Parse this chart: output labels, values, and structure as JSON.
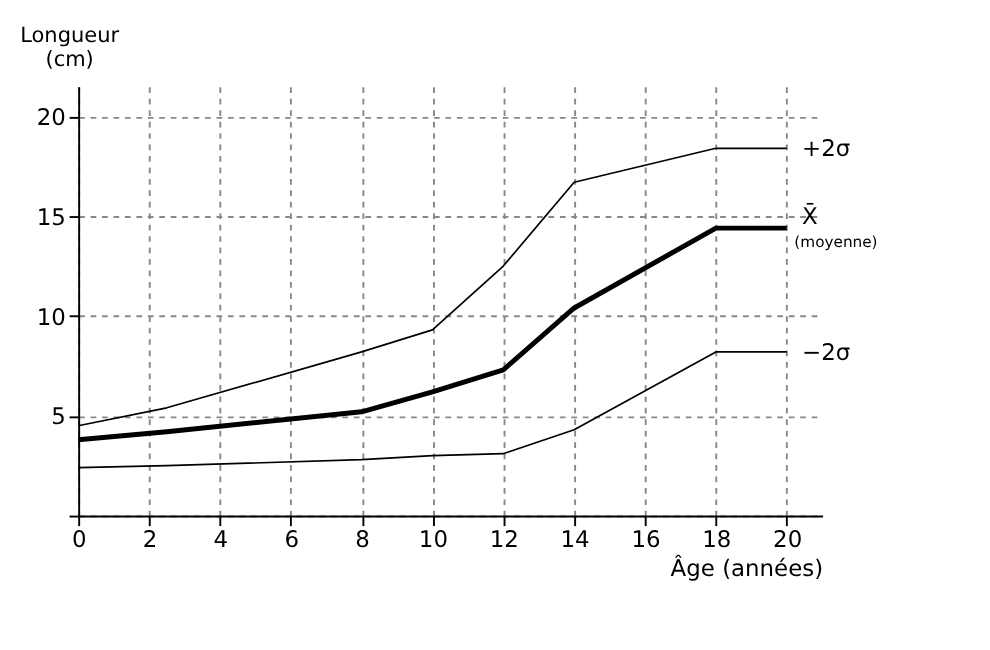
{
  "chart_data": {
    "type": "line",
    "xlabel": "Âge (années)",
    "ylabel": "Longueur (cm)",
    "x": [
      0,
      2.5,
      8,
      10,
      12,
      14,
      18,
      20
    ],
    "series": [
      {
        "name": "+2σ",
        "color": "#000000",
        "values": [
          4.5,
          5.4,
          8.2,
          9.3,
          12.5,
          16.7,
          18.4,
          18.4
        ]
      },
      {
        "name": "X̄ (moyenne)",
        "color": "#000000",
        "values": [
          3.8,
          4.2,
          5.2,
          6.2,
          7.3,
          10.4,
          14.4,
          14.4
        ]
      },
      {
        "name": "−2σ",
        "color": "#000000",
        "values": [
          2.4,
          2.5,
          2.8,
          3.0,
          3.1,
          4.3,
          8.2,
          8.2
        ]
      }
    ],
    "xlim": [
      0,
      21
    ],
    "ylim": [
      0,
      21.5
    ],
    "xticks": [
      0,
      2,
      4,
      6,
      8,
      10,
      12,
      14,
      16,
      18,
      20
    ],
    "yticks": [
      {
        "value": 0,
        "label": null
      },
      5,
      10,
      15,
      20
    ],
    "grid": true,
    "marker": "none",
    "line_style": "solid"
  }
}
